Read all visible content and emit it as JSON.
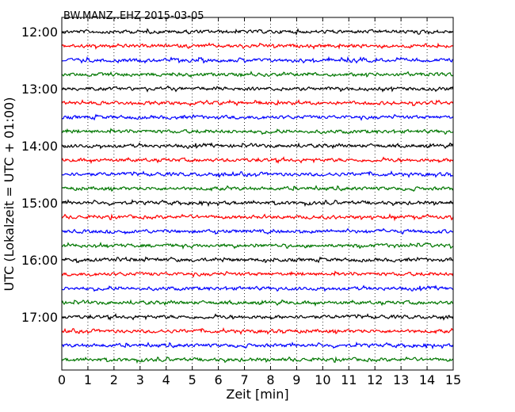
{
  "chart_data": {
    "type": "line",
    "title": "BW.MANZ..EHZ 2015-03-05",
    "xlabel": "Zeit  [min]",
    "ylabel": "UTC (Lokalzeit = UTC + 01:00)",
    "xlim": [
      0,
      15
    ],
    "x_ticks": [
      "0",
      "1",
      "2",
      "3",
      "4",
      "5",
      "6",
      "7",
      "8",
      "9",
      "10",
      "11",
      "12",
      "13",
      "14",
      "15"
    ],
    "y_ticks": [
      "12:00",
      "13:00",
      "14:00",
      "15:00",
      "16:00",
      "17:00"
    ],
    "grid": "vertical dotted",
    "trace_interval_min": 15,
    "traces": [
      {
        "start": "12:00",
        "color": "#000000"
      },
      {
        "start": "12:15",
        "color": "#ff0000"
      },
      {
        "start": "12:30",
        "color": "#0000ff"
      },
      {
        "start": "12:45",
        "color": "#007700"
      },
      {
        "start": "13:00",
        "color": "#000000"
      },
      {
        "start": "13:15",
        "color": "#ff0000"
      },
      {
        "start": "13:30",
        "color": "#0000ff"
      },
      {
        "start": "13:45",
        "color": "#007700"
      },
      {
        "start": "14:00",
        "color": "#000000"
      },
      {
        "start": "14:15",
        "color": "#ff0000"
      },
      {
        "start": "14:30",
        "color": "#0000ff"
      },
      {
        "start": "14:45",
        "color": "#007700"
      },
      {
        "start": "15:00",
        "color": "#000000"
      },
      {
        "start": "15:15",
        "color": "#ff0000"
      },
      {
        "start": "15:30",
        "color": "#0000ff"
      },
      {
        "start": "15:45",
        "color": "#007700"
      },
      {
        "start": "16:00",
        "color": "#000000"
      },
      {
        "start": "16:15",
        "color": "#ff0000"
      },
      {
        "start": "16:30",
        "color": "#0000ff"
      },
      {
        "start": "16:45",
        "color": "#007700"
      },
      {
        "start": "17:00",
        "color": "#000000"
      },
      {
        "start": "17:15",
        "color": "#ff0000"
      },
      {
        "start": "17:30",
        "color": "#0000ff"
      },
      {
        "start": "17:45",
        "color": "#007700"
      }
    ]
  }
}
